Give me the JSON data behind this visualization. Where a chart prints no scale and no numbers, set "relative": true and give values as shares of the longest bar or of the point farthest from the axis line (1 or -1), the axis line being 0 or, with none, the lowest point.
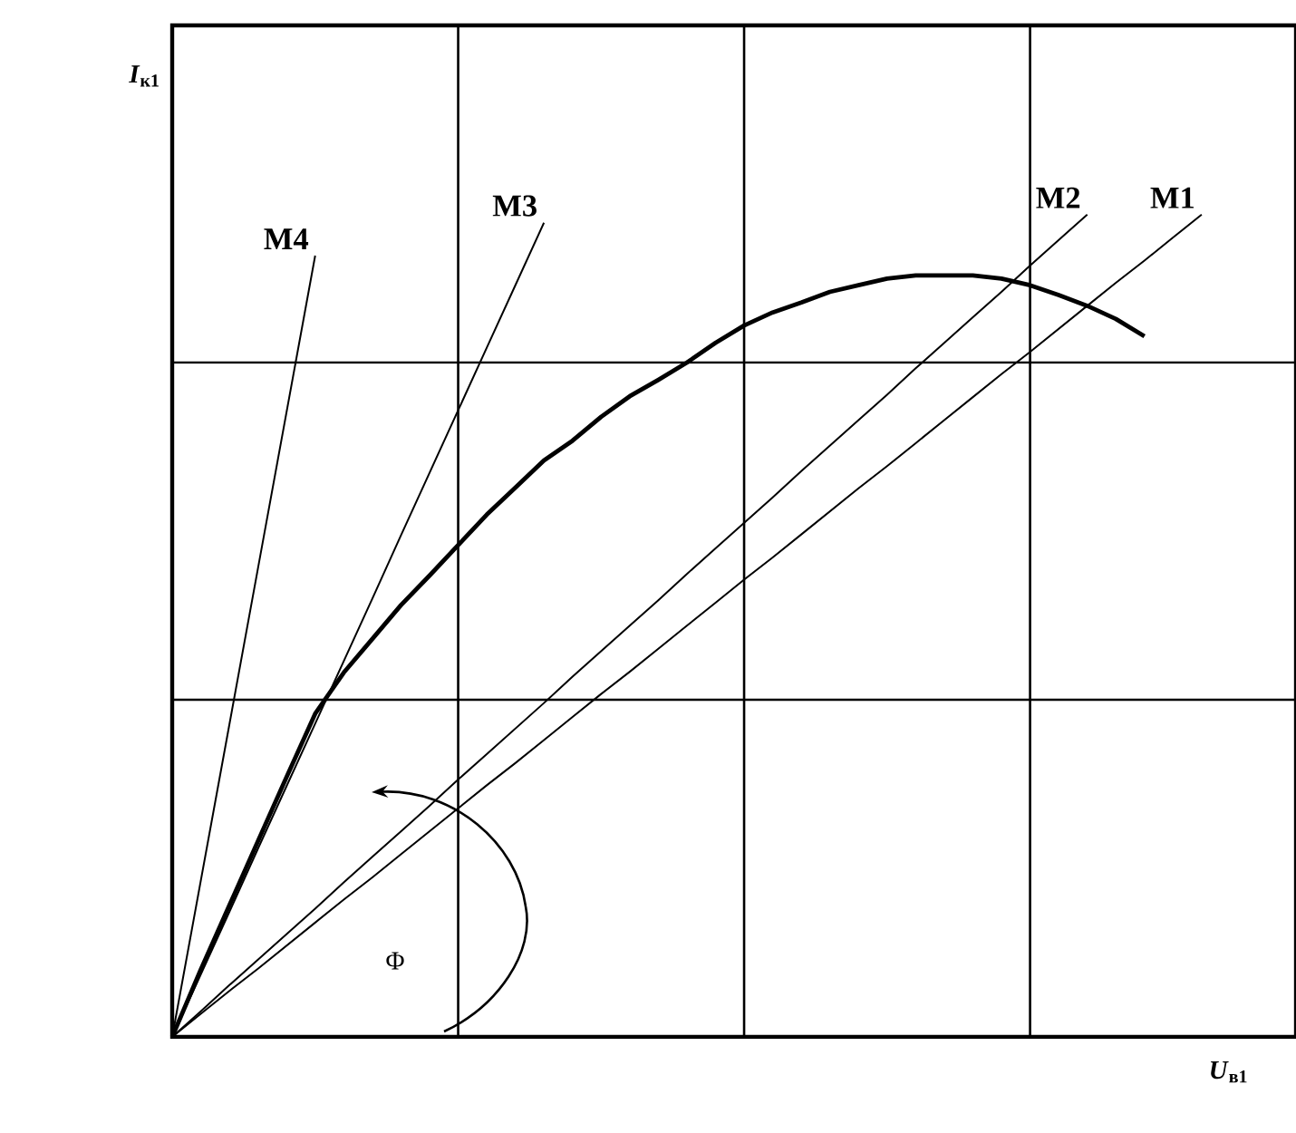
{
  "chart_data": {
    "type": "line",
    "xlabel": "*U*$_{в1}$",
    "ylabel": "*I*$_{к1}$",
    "relative": true,
    "categories": [
      null,
      null,
      null,
      null,
      null,
      null,
      null,
      null,
      null,
      null,
      null,
      null,
      null,
      null,
      null,
      null,
      null,
      null,
      null,
      null,
      null,
      null,
      null,
      null,
      null,
      null,
      null,
      null,
      null,
      null,
      null,
      null,
      null,
      null,
      null,
      null,
      null,
      null,
      null,
      null
    ],
    "grid": true,
    "marker": "none",
    "line_style": "solid",
    "annotations": [
      "Φ"
    ],
    "series": [
      {
        "color": "#000000",
        "values": [
          0,
          0.082,
          0.16,
          0.238,
          0.316,
          0.393,
          0.443,
          0.484,
          0.525,
          0.561,
          0.598,
          0.635,
          0.668,
          0.701,
          0.725,
          0.754,
          0.779,
          0.799,
          0.82,
          0.844,
          0.865,
          0.881,
          0.893,
          0.906,
          0.914,
          0.922,
          0.926,
          0.926,
          0.926,
          0.922,
          0.914,
          0.902,
          0.889,
          0.873,
          0.852,
          null,
          null,
          null,
          null,
          null
        ]
      },
      {
        "name": "M1",
        "color": "#000000",
        "values": [
          0,
          0.028,
          0.056,
          0.083,
          0.111,
          0.139,
          0.167,
          0.194,
          0.222,
          0.25,
          0.278,
          0.306,
          0.333,
          0.361,
          0.389,
          0.417,
          0.444,
          0.472,
          0.5,
          0.528,
          0.556,
          0.583,
          0.611,
          0.639,
          0.667,
          0.694,
          0.722,
          0.75,
          0.778,
          0.806,
          0.833,
          0.861,
          0.889,
          0.917,
          0.944,
          0.972,
          1,
          null,
          null,
          null
        ]
      },
      {
        "name": "M2",
        "color": "#000000",
        "values": [
          0,
          0.031,
          0.063,
          0.094,
          0.125,
          0.156,
          0.188,
          0.219,
          0.25,
          0.281,
          0.313,
          0.344,
          0.375,
          0.406,
          0.438,
          0.469,
          0.5,
          0.531,
          0.563,
          0.594,
          0.625,
          0.656,
          0.688,
          0.719,
          0.75,
          0.781,
          0.813,
          0.844,
          0.875,
          0.906,
          0.938,
          0.969,
          1,
          null,
          null,
          null,
          null,
          null,
          null,
          null
        ]
      },
      {
        "name": "M3",
        "color": "#000000",
        "values": [
          0,
          0.076,
          0.152,
          0.229,
          0.305,
          0.381,
          0.457,
          0.533,
          0.61,
          0.686,
          0.762,
          0.838,
          0.914,
          0.99,
          null,
          null,
          null,
          null,
          null,
          null,
          null,
          null,
          null,
          null,
          null,
          null,
          null,
          null,
          null,
          null,
          null,
          null,
          null,
          null,
          null,
          null,
          null,
          null,
          null,
          null
        ]
      },
      {
        "name": "M4",
        "color": "#000000",
        "values": [
          0,
          0.19,
          0.38,
          0.57,
          0.76,
          0.95,
          null,
          null,
          null,
          null,
          null,
          null,
          null,
          null,
          null,
          null,
          null,
          null,
          null,
          null,
          null,
          null,
          null,
          null,
          null,
          null,
          null,
          null,
          null,
          null,
          null,
          null,
          null,
          null,
          null,
          null,
          null,
          null,
          null,
          null
        ]
      }
    ]
  }
}
